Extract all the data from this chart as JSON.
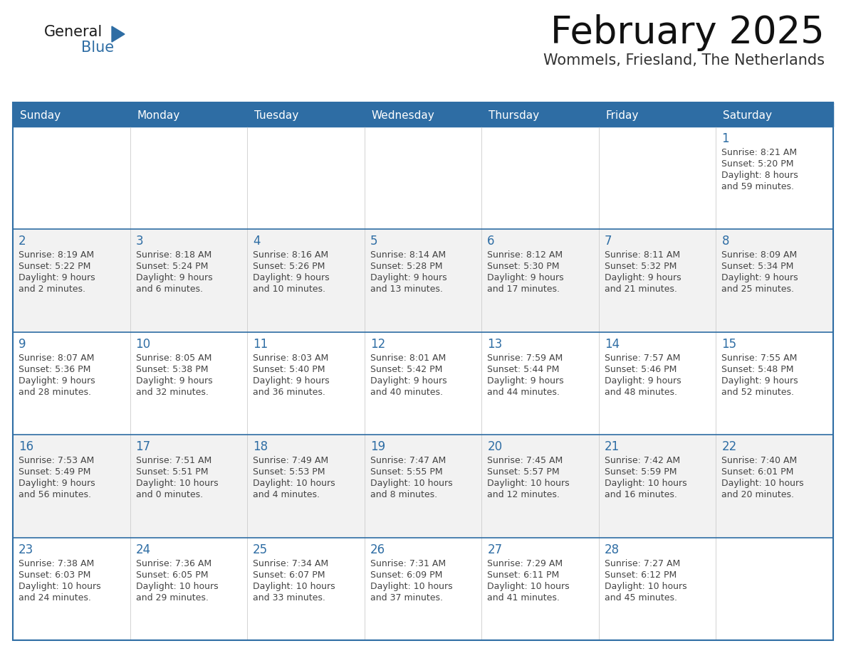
{
  "title": "February 2025",
  "subtitle": "Wommels, Friesland, The Netherlands",
  "days_of_week": [
    "Sunday",
    "Monday",
    "Tuesday",
    "Wednesday",
    "Thursday",
    "Friday",
    "Saturday"
  ],
  "header_bg": "#2E6DA4",
  "header_text": "#FFFFFF",
  "cell_bg_odd": "#F2F2F2",
  "cell_bg_even": "#FFFFFF",
  "border_color": "#2E6DA4",
  "text_color": "#444444",
  "day_number_color": "#2E6DA4",
  "logo_general_color": "#1a1a1a",
  "logo_blue_color": "#2E6DA4",
  "calendar_data": [
    [
      {
        "day": null,
        "sunrise": null,
        "sunset": null,
        "daylight": null
      },
      {
        "day": null,
        "sunrise": null,
        "sunset": null,
        "daylight": null
      },
      {
        "day": null,
        "sunrise": null,
        "sunset": null,
        "daylight": null
      },
      {
        "day": null,
        "sunrise": null,
        "sunset": null,
        "daylight": null
      },
      {
        "day": null,
        "sunrise": null,
        "sunset": null,
        "daylight": null
      },
      {
        "day": null,
        "sunrise": null,
        "sunset": null,
        "daylight": null
      },
      {
        "day": 1,
        "sunrise": "8:21 AM",
        "sunset": "5:20 PM",
        "daylight_h": "8 hours",
        "daylight_m": "and 59 minutes."
      }
    ],
    [
      {
        "day": 2,
        "sunrise": "8:19 AM",
        "sunset": "5:22 PM",
        "daylight_h": "9 hours",
        "daylight_m": "and 2 minutes."
      },
      {
        "day": 3,
        "sunrise": "8:18 AM",
        "sunset": "5:24 PM",
        "daylight_h": "9 hours",
        "daylight_m": "and 6 minutes."
      },
      {
        "day": 4,
        "sunrise": "8:16 AM",
        "sunset": "5:26 PM",
        "daylight_h": "9 hours",
        "daylight_m": "and 10 minutes."
      },
      {
        "day": 5,
        "sunrise": "8:14 AM",
        "sunset": "5:28 PM",
        "daylight_h": "9 hours",
        "daylight_m": "and 13 minutes."
      },
      {
        "day": 6,
        "sunrise": "8:12 AM",
        "sunset": "5:30 PM",
        "daylight_h": "9 hours",
        "daylight_m": "and 17 minutes."
      },
      {
        "day": 7,
        "sunrise": "8:11 AM",
        "sunset": "5:32 PM",
        "daylight_h": "9 hours",
        "daylight_m": "and 21 minutes."
      },
      {
        "day": 8,
        "sunrise": "8:09 AM",
        "sunset": "5:34 PM",
        "daylight_h": "9 hours",
        "daylight_m": "and 25 minutes."
      }
    ],
    [
      {
        "day": 9,
        "sunrise": "8:07 AM",
        "sunset": "5:36 PM",
        "daylight_h": "9 hours",
        "daylight_m": "and 28 minutes."
      },
      {
        "day": 10,
        "sunrise": "8:05 AM",
        "sunset": "5:38 PM",
        "daylight_h": "9 hours",
        "daylight_m": "and 32 minutes."
      },
      {
        "day": 11,
        "sunrise": "8:03 AM",
        "sunset": "5:40 PM",
        "daylight_h": "9 hours",
        "daylight_m": "and 36 minutes."
      },
      {
        "day": 12,
        "sunrise": "8:01 AM",
        "sunset": "5:42 PM",
        "daylight_h": "9 hours",
        "daylight_m": "and 40 minutes."
      },
      {
        "day": 13,
        "sunrise": "7:59 AM",
        "sunset": "5:44 PM",
        "daylight_h": "9 hours",
        "daylight_m": "and 44 minutes."
      },
      {
        "day": 14,
        "sunrise": "7:57 AM",
        "sunset": "5:46 PM",
        "daylight_h": "9 hours",
        "daylight_m": "and 48 minutes."
      },
      {
        "day": 15,
        "sunrise": "7:55 AM",
        "sunset": "5:48 PM",
        "daylight_h": "9 hours",
        "daylight_m": "and 52 minutes."
      }
    ],
    [
      {
        "day": 16,
        "sunrise": "7:53 AM",
        "sunset": "5:49 PM",
        "daylight_h": "9 hours",
        "daylight_m": "and 56 minutes."
      },
      {
        "day": 17,
        "sunrise": "7:51 AM",
        "sunset": "5:51 PM",
        "daylight_h": "10 hours",
        "daylight_m": "and 0 minutes."
      },
      {
        "day": 18,
        "sunrise": "7:49 AM",
        "sunset": "5:53 PM",
        "daylight_h": "10 hours",
        "daylight_m": "and 4 minutes."
      },
      {
        "day": 19,
        "sunrise": "7:47 AM",
        "sunset": "5:55 PM",
        "daylight_h": "10 hours",
        "daylight_m": "and 8 minutes."
      },
      {
        "day": 20,
        "sunrise": "7:45 AM",
        "sunset": "5:57 PM",
        "daylight_h": "10 hours",
        "daylight_m": "and 12 minutes."
      },
      {
        "day": 21,
        "sunrise": "7:42 AM",
        "sunset": "5:59 PM",
        "daylight_h": "10 hours",
        "daylight_m": "and 16 minutes."
      },
      {
        "day": 22,
        "sunrise": "7:40 AM",
        "sunset": "6:01 PM",
        "daylight_h": "10 hours",
        "daylight_m": "and 20 minutes."
      }
    ],
    [
      {
        "day": 23,
        "sunrise": "7:38 AM",
        "sunset": "6:03 PM",
        "daylight_h": "10 hours",
        "daylight_m": "and 24 minutes."
      },
      {
        "day": 24,
        "sunrise": "7:36 AM",
        "sunset": "6:05 PM",
        "daylight_h": "10 hours",
        "daylight_m": "and 29 minutes."
      },
      {
        "day": 25,
        "sunrise": "7:34 AM",
        "sunset": "6:07 PM",
        "daylight_h": "10 hours",
        "daylight_m": "and 33 minutes."
      },
      {
        "day": 26,
        "sunrise": "7:31 AM",
        "sunset": "6:09 PM",
        "daylight_h": "10 hours",
        "daylight_m": "and 37 minutes."
      },
      {
        "day": 27,
        "sunrise": "7:29 AM",
        "sunset": "6:11 PM",
        "daylight_h": "10 hours",
        "daylight_m": "and 41 minutes."
      },
      {
        "day": 28,
        "sunrise": "7:27 AM",
        "sunset": "6:12 PM",
        "daylight_h": "10 hours",
        "daylight_m": "and 45 minutes."
      },
      {
        "day": null,
        "sunrise": null,
        "sunset": null,
        "daylight_h": null,
        "daylight_m": null
      }
    ]
  ]
}
